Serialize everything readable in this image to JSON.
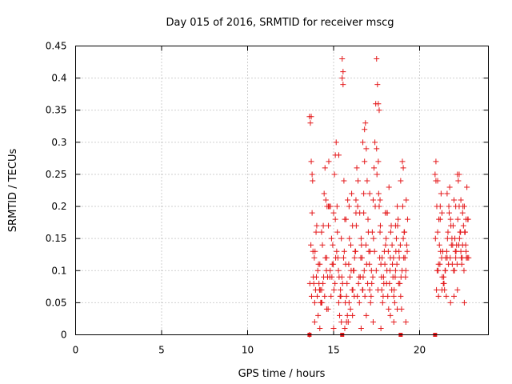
{
  "chart_data": {
    "type": "scatter",
    "title": "Day 015 of 2016, SRMTID for receiver mscg",
    "xlabel": "GPS time / hours",
    "ylabel": "SRMTID / TECUs",
    "xlim": [
      0,
      24
    ],
    "ylim": [
      0,
      0.45
    ],
    "grid": true,
    "x_ticks": [
      0,
      5,
      10,
      15,
      20
    ],
    "y_ticks": [
      0,
      0.05,
      0.1,
      0.15,
      0.2,
      0.25,
      0.3,
      0.35,
      0.4,
      0.45
    ],
    "x_tick_labels": [
      "0",
      "5",
      "10",
      "15",
      "20"
    ],
    "y_tick_labels": [
      "0",
      "0.05",
      "0.1",
      "0.15",
      "0.2",
      "0.25",
      "0.3",
      "0.35",
      "0.4",
      "0.45"
    ],
    "marker_color": "#e41a1c",
    "series": [
      {
        "name": "SRMTID",
        "marker": "plus",
        "x": [
          13.6,
          13.65,
          13.7,
          13.75,
          13.8,
          13.85,
          13.9,
          13.95,
          14.0,
          14.05,
          14.1,
          14.15,
          14.2,
          14.25,
          14.3,
          14.35,
          14.4,
          14.45,
          14.5,
          14.55,
          14.6,
          14.65,
          14.7,
          14.75,
          14.8,
          14.85,
          14.9,
          14.95,
          15.0,
          15.05,
          15.1,
          15.15,
          15.2,
          15.25,
          15.3,
          15.35,
          15.4,
          15.45,
          15.5,
          15.55,
          15.6,
          15.65,
          15.7,
          15.75,
          15.8,
          15.85,
          15.9,
          15.95,
          16.0,
          16.05,
          16.1,
          16.15,
          16.2,
          16.25,
          16.3,
          16.35,
          16.4,
          16.45,
          16.5,
          16.55,
          16.6,
          16.65,
          16.7,
          16.75,
          16.8,
          16.85,
          16.9,
          16.95,
          17.0,
          17.05,
          17.1,
          17.15,
          17.2,
          17.25,
          17.3,
          17.35,
          17.4,
          17.45,
          17.5,
          17.55,
          17.6,
          17.65,
          17.7,
          17.75,
          17.8,
          17.85,
          17.9,
          17.95,
          18.0,
          18.05,
          18.1,
          18.15,
          18.2,
          18.25,
          18.3,
          18.35,
          18.4,
          18.45,
          18.5,
          18.55,
          18.6,
          18.65,
          18.7,
          18.75,
          18.8,
          18.85,
          18.9,
          18.95,
          19.0,
          19.05,
          19.1,
          19.15,
          19.2,
          19.25,
          19.3,
          20.9,
          20.95,
          21.0,
          21.05,
          21.1,
          21.15,
          21.2,
          21.25,
          21.3,
          21.35,
          21.4,
          21.45,
          21.5,
          21.55,
          21.6,
          21.65,
          21.7,
          21.75,
          21.8,
          21.85,
          21.9,
          21.95,
          22.0,
          22.05,
          22.1,
          22.15,
          22.2,
          22.25,
          22.3,
          22.35,
          22.4,
          22.45,
          22.5,
          22.55,
          22.6,
          22.65,
          22.7,
          22.75,
          22.8,
          22.85,
          13.62,
          13.72,
          13.82,
          13.92,
          14.02,
          14.12,
          14.22,
          14.32,
          14.42,
          14.52,
          14.62,
          14.72,
          14.82,
          14.92,
          15.02,
          15.12,
          15.22,
          15.32,
          15.42,
          15.52,
          15.62,
          15.72,
          15.82,
          15.92,
          16.02,
          16.12,
          16.22,
          16.32,
          16.42,
          16.52,
          16.62,
          16.72,
          16.82,
          16.92,
          17.02,
          17.12,
          17.22,
          17.32,
          17.42,
          17.52,
          17.62,
          17.72,
          17.82,
          17.92,
          18.02,
          18.12,
          18.22,
          18.32,
          18.42,
          18.52,
          18.62,
          18.72,
          18.82,
          18.92,
          19.02,
          19.12,
          19.22,
          20.92,
          21.02,
          21.12,
          21.22,
          21.32,
          21.42,
          21.52,
          21.62,
          21.72,
          21.82,
          21.92,
          22.02,
          22.12,
          22.22,
          22.32,
          22.42,
          22.52,
          22.62,
          22.72,
          22.82,
          13.68,
          13.78,
          13.88,
          13.98,
          14.08,
          14.18,
          14.28,
          14.38,
          14.48,
          14.58,
          14.68,
          14.78,
          14.88,
          14.98,
          15.08,
          15.18,
          15.28,
          15.38,
          15.48,
          15.58,
          15.68,
          15.78,
          15.88,
          15.98,
          16.08,
          16.18,
          16.28,
          16.38,
          16.48,
          16.58,
          16.68,
          16.78,
          16.88,
          16.98,
          17.08,
          17.18,
          17.28,
          17.38,
          17.48,
          17.58,
          17.68,
          17.78,
          17.88,
          17.98,
          18.08,
          18.18,
          18.28,
          18.38,
          18.48,
          18.58,
          18.68,
          18.78,
          18.88,
          18.98,
          19.08,
          19.18,
          19.28,
          20.98,
          21.08,
          21.18,
          21.28,
          21.38,
          21.48,
          21.58,
          21.68,
          21.78,
          21.88,
          21.98,
          22.08,
          22.18,
          22.28,
          22.38,
          22.48,
          22.58,
          22.68,
          22.78,
          13.7,
          13.75,
          15.5,
          15.55,
          17.6,
          17.65,
          15.3,
          16.7,
          16.8,
          17.5,
          18.9,
          20.95,
          21.05,
          22.3,
          22.4,
          13.6,
          13.9,
          14.2,
          14.6,
          15.0,
          15.45,
          15.65,
          15.75,
          16.1,
          16.6,
          16.9,
          17.3,
          17.75,
          18.3,
          18.5,
          18.7,
          19.2,
          21.1,
          21.3,
          21.8,
          22.0,
          22.2,
          22.6,
          14.3,
          14.7,
          15.1,
          15.9,
          16.3,
          16.75,
          17.1,
          17.7,
          18.1,
          18.6,
          19.05,
          21.2,
          21.6,
          22.1,
          22.5,
          22.7
        ],
        "y": [
          0.34,
          0.33,
          0.27,
          0.19,
          0.13,
          0.08,
          0.05,
          0.07,
          0.09,
          0.06,
          0.03,
          0.08,
          0.11,
          0.05,
          0.07,
          0.14,
          0.17,
          0.22,
          0.26,
          0.21,
          0.12,
          0.09,
          0.17,
          0.2,
          0.1,
          0.06,
          0.09,
          0.14,
          0.19,
          0.25,
          0.28,
          0.3,
          0.2,
          0.12,
          0.05,
          0.03,
          0.07,
          0.15,
          0.43,
          0.41,
          0.24,
          0.18,
          0.11,
          0.06,
          0.03,
          0.02,
          0.05,
          0.09,
          0.14,
          0.22,
          0.17,
          0.1,
          0.06,
          0.13,
          0.19,
          0.26,
          0.2,
          0.08,
          0.05,
          0.09,
          0.15,
          0.12,
          0.07,
          0.22,
          0.27,
          0.33,
          0.29,
          0.24,
          0.18,
          0.13,
          0.07,
          0.05,
          0.1,
          0.16,
          0.21,
          0.26,
          0.3,
          0.36,
          0.43,
          0.39,
          0.27,
          0.2,
          0.16,
          0.11,
          0.07,
          0.05,
          0.09,
          0.13,
          0.19,
          0.15,
          0.1,
          0.06,
          0.04,
          0.08,
          0.12,
          0.17,
          0.14,
          0.09,
          0.06,
          0.05,
          0.1,
          0.15,
          0.2,
          0.18,
          0.13,
          0.08,
          0.06,
          0.04,
          0.27,
          0.26,
          0.16,
          0.12,
          0.1,
          0.14,
          0.18,
          0.25,
          0.24,
          0.2,
          0.16,
          0.11,
          0.14,
          0.18,
          0.22,
          0.19,
          0.13,
          0.09,
          0.07,
          0.1,
          0.06,
          0.12,
          0.16,
          0.2,
          0.23,
          0.18,
          0.14,
          0.11,
          0.17,
          0.21,
          0.15,
          0.12,
          0.14,
          0.25,
          0.24,
          0.2,
          0.16,
          0.13,
          0.11,
          0.14,
          0.17,
          0.2,
          0.16,
          0.13,
          0.23,
          0.18,
          0.12,
          0.08,
          0.06,
          0.09,
          0.13,
          0.17,
          0.11,
          0.07,
          0.05,
          0.09,
          0.12,
          0.2,
          0.27,
          0.2,
          0.11,
          0.07,
          0.12,
          0.16,
          0.09,
          0.06,
          0.08,
          0.13,
          0.18,
          0.21,
          0.15,
          0.1,
          0.07,
          0.12,
          0.17,
          0.24,
          0.19,
          0.14,
          0.09,
          0.06,
          0.11,
          0.16,
          0.13,
          0.08,
          0.15,
          0.2,
          0.25,
          0.22,
          0.17,
          0.12,
          0.08,
          0.14,
          0.19,
          0.23,
          0.16,
          0.11,
          0.07,
          0.13,
          0.17,
          0.12,
          0.09,
          0.2,
          0.16,
          0.21,
          0.15,
          0.1,
          0.18,
          0.13,
          0.09,
          0.08,
          0.12,
          0.15,
          0.19,
          0.17,
          0.14,
          0.1,
          0.13,
          0.18,
          0.15,
          0.12,
          0.2,
          0.16,
          0.12,
          0.18,
          0.14,
          0.24,
          0.12,
          0.16,
          0.1,
          0.07,
          0.05,
          0.08,
          0.06,
          0.1,
          0.04,
          0.09,
          0.15,
          0.11,
          0.08,
          0.13,
          0.1,
          0.06,
          0.09,
          0.12,
          0.05,
          0.08,
          0.11,
          0.04,
          0.07,
          0.1,
          0.13,
          0.06,
          0.09,
          0.12,
          0.07,
          0.1,
          0.14,
          0.08,
          0.11,
          0.06,
          0.09,
          0.13,
          0.1,
          0.07,
          0.12,
          0.09,
          0.06,
          0.11,
          0.08,
          0.13,
          0.1,
          0.07,
          0.12,
          0.09,
          0.11,
          0.08,
          0.14,
          0.1,
          0.12,
          0.09,
          0.13,
          0.07,
          0.1,
          0.11,
          0.12,
          0.08,
          0.1,
          0.13,
          0.11,
          0.12,
          0.15,
          0.1,
          0.13,
          0.11,
          0.14,
          0.16,
          0.12,
          0.1,
          0.14,
          0.12,
          0.34,
          0.25,
          0.4,
          0.39,
          0.36,
          0.35,
          0.28,
          0.3,
          0.32,
          0.29,
          0.24,
          0.27,
          0.24,
          0.25,
          0.21,
          0.0,
          0.02,
          0.01,
          0.04,
          0.01,
          0.02,
          0.01,
          0.02,
          0.03,
          0.01,
          0.03,
          0.02,
          0.01,
          0.03,
          0.02,
          0.04,
          0.02,
          0.06,
          0.07,
          0.05,
          0.06,
          0.07,
          0.05,
          0.16,
          0.2,
          0.18,
          0.2,
          0.21,
          0.19,
          0.22,
          0.21,
          0.19,
          0.17,
          0.15,
          0.2,
          0.22,
          0.2,
          0.19,
          0.18
        ]
      }
    ],
    "baseline_markers": {
      "marker": "square",
      "x": [
        13.6,
        15.5,
        18.9,
        20.9
      ],
      "y": [
        0,
        0,
        0,
        0
      ]
    }
  }
}
